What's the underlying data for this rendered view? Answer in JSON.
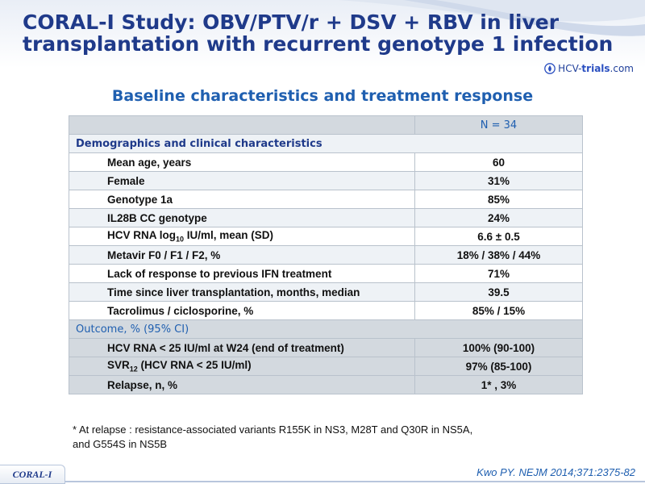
{
  "slide": {
    "title_line1": "CORAL-I Study: OBV/PTV/r + DSV + RBV in liver",
    "title_line2": "transplantation with recurrent genotype 1 infection",
    "subtitle": "Baseline characteristics and treatment response",
    "logo": {
      "icon": "droplet-icon",
      "prefix": "HCV-",
      "main": "trials",
      "suffix": ".com"
    },
    "corner_tag": "CORAL-I",
    "citation": "Kwo PY. NEJM 2014;371:2375-82",
    "colors": {
      "title": "#1f3a8a",
      "subtitle": "#1f5fb0",
      "header_fill": "#d3d9df",
      "alt_row_fill": "#eef2f6"
    }
  },
  "table": {
    "header_value": "N = 34",
    "section1": "Demographics and clinical characteristics",
    "rows1": [
      {
        "label": "Mean age, years",
        "value": "60"
      },
      {
        "label": "Female",
        "value": "31%"
      },
      {
        "label": "Genotype 1a",
        "value": "85%"
      },
      {
        "label": "IL28B CC genotype",
        "value": "24%"
      },
      {
        "label_pre": "HCV RNA log",
        "label_sub": "10",
        "label_post": " IU/ml, mean (SD)",
        "value": "6.6 ± 0.5"
      },
      {
        "label": "Metavir F0 / F1 / F2, %",
        "value": "18% / 38% / 44%"
      },
      {
        "label": "Lack of response to previous IFN treatment",
        "value": "71%"
      },
      {
        "label": "Time since liver transplantation, months, median",
        "value": "39.5"
      },
      {
        "label": "Tacrolimus / ciclosporine, %",
        "value": "85% / 15%"
      }
    ],
    "section2": "Outcome, % (95% CI)",
    "rows2": [
      {
        "label": "HCV RNA < 25 IU/ml at W24 (end of treatment)",
        "value": "100% (90-100)"
      },
      {
        "label_pre": "SVR",
        "label_sub": "12",
        "label_post": " (HCV RNA < 25 IU/ml)",
        "value": "97% (85-100)"
      },
      {
        "label": "Relapse, n, %",
        "value": "1* , 3%"
      }
    ]
  },
  "footnote": {
    "line1": "* At relapse :  resistance-associated variants R155K in NS3, M28T and Q30R in NS5A,",
    "line2": "and G554S in NS5B"
  }
}
